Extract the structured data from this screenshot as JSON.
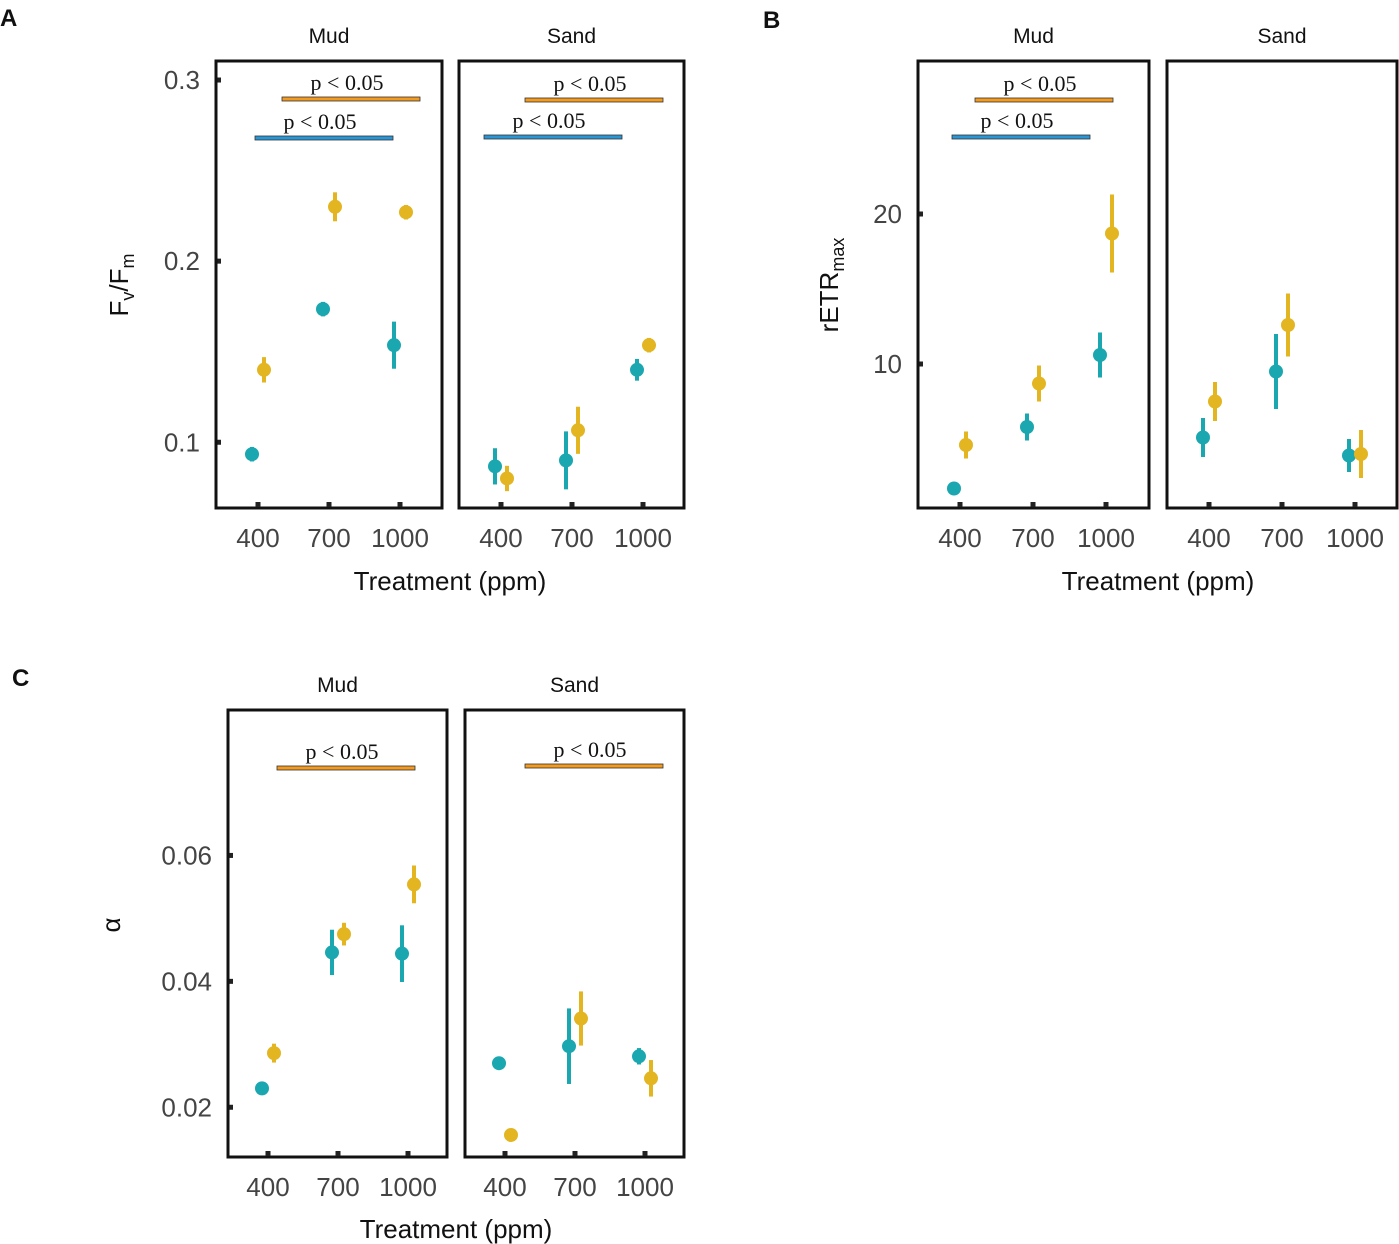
{
  "chart_data": [
    {
      "panel": "A",
      "type": "scatter",
      "ylabel": "F",
      "ylabel_sub1": "v",
      "ylabel_mid": "/F",
      "ylabel_sub2": "m",
      "xlabel": "Treatment (ppm)",
      "ylim": [
        0.0637,
        0.3105
      ],
      "yticks": [
        0.1,
        0.2,
        0.3
      ],
      "ytick_labels": [
        "0.1",
        "0.2",
        "0.3"
      ],
      "categories": [
        "400",
        "700",
        "1000"
      ],
      "facets": [
        {
          "name": "Mud",
          "series": [
            {
              "color": "#1aa7b0",
              "values": [
                0.0934,
                0.1735,
                0.1536
              ],
              "errors": [
                0.004,
                0.004,
                0.013
              ]
            },
            {
              "color": "#e3b521",
              "values": [
                0.14,
                0.23,
                0.227
              ],
              "errors": [
                0.007,
                0.008,
                0.004
              ]
            }
          ],
          "significance": [
            {
              "label": "p < 0.05",
              "color": "#f39a1f",
              "from": "700",
              "to": "1000"
            },
            {
              "label": "p < 0.05",
              "color": "#2a96d6",
              "from": "400",
              "to": "1000"
            }
          ]
        },
        {
          "name": "Sand",
          "series": [
            {
              "color": "#1aa7b0",
              "values": [
                0.0867,
                0.09,
                0.14
              ],
              "errors": [
                0.01,
                0.016,
                0.006
              ]
            },
            {
              "color": "#e3b521",
              "values": [
                0.08,
                0.1066,
                0.1536
              ],
              "errors": [
                0.007,
                0.013,
                0.004
              ]
            }
          ],
          "significance": [
            {
              "label": "p < 0.05",
              "color": "#f39a1f",
              "from": "700",
              "to": "1000"
            },
            {
              "label": "p < 0.05",
              "color": "#2a96d6",
              "from": "400",
              "to": "1000"
            }
          ]
        }
      ]
    },
    {
      "panel": "B",
      "type": "scatter",
      "ylabel": "rETR",
      "ylabel_sub1": "max",
      "xlabel": "Treatment (ppm)",
      "ylim": [
        0.4,
        30.2
      ],
      "yticks": [
        10,
        20
      ],
      "ytick_labels": [
        "10",
        "20"
      ],
      "categories": [
        "400",
        "700",
        "1000"
      ],
      "facets": [
        {
          "name": "Mud",
          "series": [
            {
              "color": "#1aa7b0",
              "values": [
                1.7,
                5.8,
                10.6
              ],
              "errors": [
                0.3,
                0.9,
                1.5
              ]
            },
            {
              "color": "#e3b521",
              "values": [
                4.6,
                8.7,
                18.7
              ],
              "errors": [
                0.9,
                1.2,
                2.6
              ]
            }
          ],
          "significance": [
            {
              "label": "p < 0.05",
              "color": "#f39a1f",
              "from": "700",
              "to": "1000"
            },
            {
              "label": "p < 0.05",
              "color": "#2a96d6",
              "from": "400",
              "to": "1000"
            }
          ]
        },
        {
          "name": "Sand",
          "series": [
            {
              "color": "#1aa7b0",
              "values": [
                5.1,
                9.5,
                3.9
              ],
              "errors": [
                1.3,
                2.5,
                1.1
              ]
            },
            {
              "color": "#e3b521",
              "values": [
                7.5,
                12.6,
                4.0
              ],
              "errors": [
                1.3,
                2.1,
                1.6
              ]
            }
          ],
          "significance": []
        }
      ]
    },
    {
      "panel": "C",
      "type": "scatter",
      "ylabel": "α",
      "xlabel": "Treatment (ppm)",
      "ylim": [
        0.0121,
        0.0831
      ],
      "yticks": [
        0.02,
        0.04,
        0.06
      ],
      "ytick_labels": [
        "0.02",
        "0.04",
        "0.06"
      ],
      "categories": [
        "400",
        "700",
        "1000"
      ],
      "facets": [
        {
          "name": "Mud",
          "series": [
            {
              "color": "#1aa7b0",
              "values": [
                0.023,
                0.0446,
                0.0444
              ],
              "errors": [
                0.0005,
                0.0036,
                0.0045
              ]
            },
            {
              "color": "#e3b521",
              "values": [
                0.0286,
                0.0475,
                0.0554
              ],
              "errors": [
                0.0015,
                0.0018,
                0.003
              ]
            }
          ],
          "significance": [
            {
              "label": "p < 0.05",
              "color": "#f39a1f",
              "from": "700",
              "to": "1000"
            }
          ]
        },
        {
          "name": "Sand",
          "series": [
            {
              "color": "#1aa7b0",
              "values": [
                0.027,
                0.0297,
                0.0281
              ],
              "errors": [
                0.0005,
                0.006,
                0.0013
              ]
            },
            {
              "color": "#e3b521",
              "values": [
                0.0156,
                0.0341,
                0.0246
              ],
              "errors": [
                0.0005,
                0.0043,
                0.0029
              ]
            }
          ],
          "significance": [
            {
              "label": "p < 0.05",
              "color": "#f39a1f",
              "from": "700",
              "to": "1000"
            }
          ]
        }
      ]
    }
  ]
}
